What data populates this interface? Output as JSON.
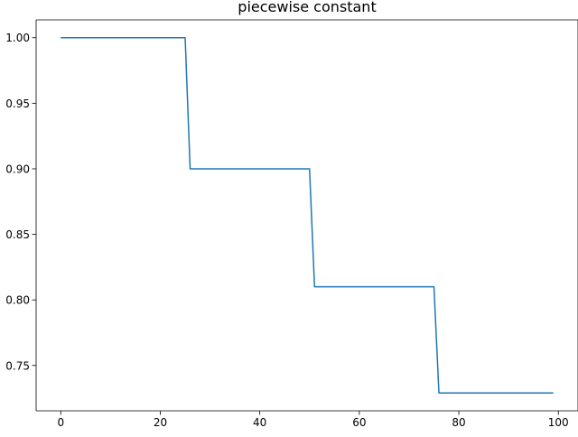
{
  "chart_data": {
    "type": "line",
    "title": "piecewise constant",
    "xlabel": "",
    "ylabel": "",
    "xlim": [
      -4.95,
      103.95
    ],
    "ylim": [
      0.7154,
      1.0136
    ],
    "xticks": [
      0,
      20,
      40,
      60,
      80,
      100
    ],
    "xtick_labels": [
      "0",
      "20",
      "40",
      "60",
      "80",
      "100"
    ],
    "yticks": [
      0.75,
      0.8,
      0.85,
      0.9,
      0.95,
      1.0
    ],
    "ytick_labels": [
      "0.75",
      "0.80",
      "0.85",
      "0.90",
      "0.95",
      "1.00"
    ],
    "grid": false,
    "series": [
      {
        "color": "#1f77b4",
        "x": [
          0,
          25,
          26,
          50,
          51,
          75,
          76,
          99
        ],
        "y": [
          1.0,
          1.0,
          0.9,
          0.9,
          0.81,
          0.81,
          0.729,
          0.729
        ]
      }
    ]
  }
}
